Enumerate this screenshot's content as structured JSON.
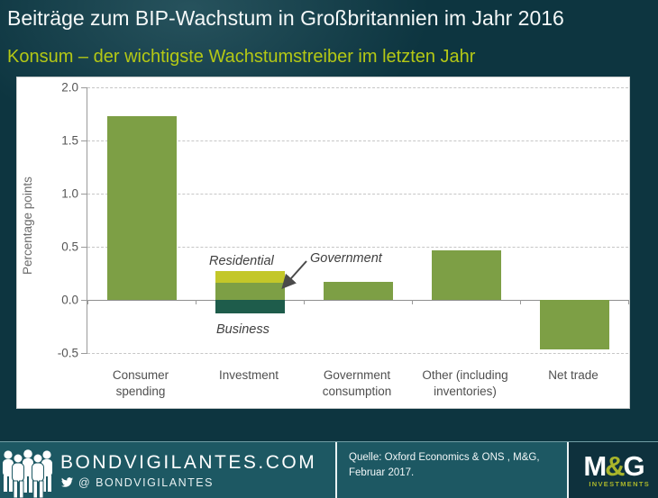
{
  "header": {
    "title": "Beiträge zum BIP-Wachstum in Großbritannien im Jahr 2016",
    "subtitle": "Konsum – der wichtigste Wachstumstreiber im letzten Jahr"
  },
  "chart_data": {
    "type": "bar",
    "title": "Beiträge zum BIP-Wachstum in Großbritannien im Jahr 2016",
    "subtitle": "Konsum – der wichtigste Wachstumstreiber im letzten Jahr",
    "xlabel": "",
    "ylabel": "Percentage points",
    "ylim": [
      -0.5,
      2.0
    ],
    "yticks": [
      2.0,
      1.5,
      1.0,
      0.5,
      0.0,
      -0.5
    ],
    "grid": "horizontal-dashed",
    "legend_position": "none",
    "categories": [
      "Consumer spending",
      "Investment",
      "Government consumption",
      "Other (including inventories)",
      "Net trade"
    ],
    "values_total": [
      1.73,
      0.14,
      0.17,
      0.47,
      -0.47
    ],
    "bars": [
      {
        "category": "Consumer\nspending",
        "segments": [
          {
            "label": "",
            "value": 1.73,
            "color": "#7d9f45"
          }
        ]
      },
      {
        "category": "Investment",
        "segments": [
          {
            "label": "Government",
            "value": 0.16,
            "color": "#7d9f45"
          },
          {
            "label": "Residential",
            "value": 0.11,
            "color": "#c3c729"
          },
          {
            "label": "Business",
            "value": -0.13,
            "color": "#1e5c4b"
          }
        ]
      },
      {
        "category": "Government\nconsumption",
        "segments": [
          {
            "label": "",
            "value": 0.17,
            "color": "#7d9f45"
          }
        ]
      },
      {
        "category": "Other (including\ninventories)",
        "segments": [
          {
            "label": "",
            "value": 0.47,
            "color": "#7d9f45"
          }
        ]
      },
      {
        "category": "Net trade",
        "segments": [
          {
            "label": "",
            "value": -0.47,
            "color": "#7d9f45"
          }
        ]
      }
    ]
  },
  "annotations": {
    "residential": "Residential",
    "government": "Government",
    "business": "Business"
  },
  "footer": {
    "site": "BONDVIGILANTES.COM",
    "twitter_handle": "@ BONDVIGILANTES",
    "source_line1": "Quelle: Oxford Economics & ONS , M&G,",
    "source_line2": "Februar 2017.",
    "logo": {
      "m": "M",
      "amp": "&",
      "g": "G",
      "sub": "INVESTMENTS"
    }
  },
  "icons": {
    "people": "people-crowd-icon",
    "twitter": "twitter-bird-icon"
  },
  "colors": {
    "background": "#0d3540",
    "subtitle": "#b4c815",
    "bar_main": "#7d9f45",
    "bar_residential": "#c3c729",
    "bar_business": "#1e5c4b",
    "footer_band": "#1d5863",
    "mg_box": "#0e313d",
    "mg_accent": "#a9b52b"
  }
}
